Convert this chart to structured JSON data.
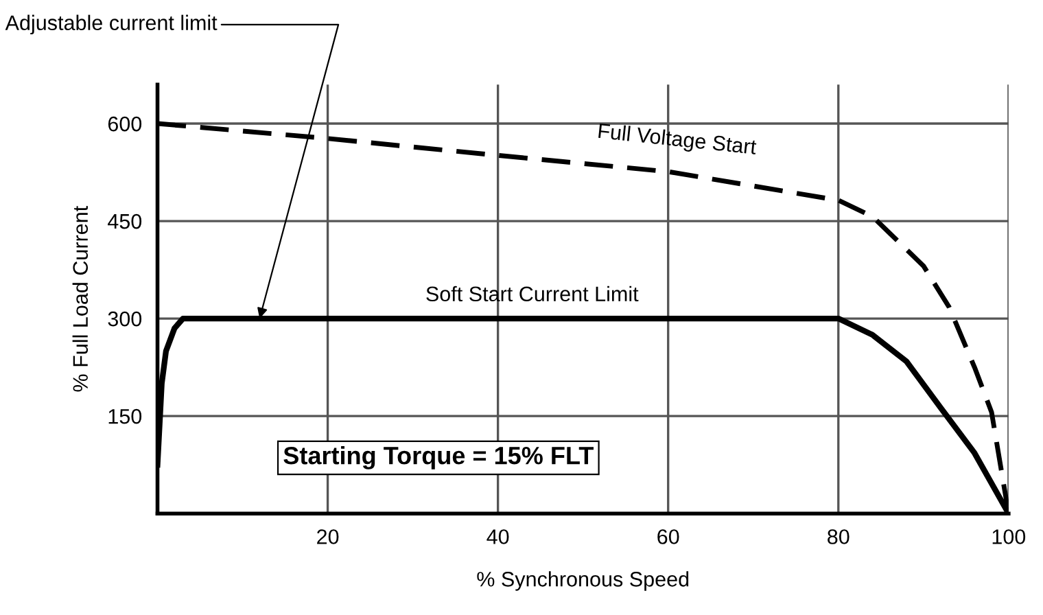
{
  "chart_data": {
    "type": "line",
    "xlabel": "% Synchronous Speed",
    "ylabel": "% Full Load Current",
    "xlim": [
      0,
      100
    ],
    "ylim": [
      0,
      660
    ],
    "xticks": [
      20,
      40,
      60,
      80,
      100
    ],
    "yticks": [
      150,
      300,
      450,
      600
    ],
    "grid": true,
    "legend": false,
    "marker": "none",
    "series": [
      {
        "name": "Full Voltage Start",
        "color": "#000000",
        "line_style": "dashed",
        "x": [
          0,
          20,
          40,
          60,
          80,
          84,
          90,
          93,
          96,
          98,
          100
        ],
        "values": [
          600,
          577,
          551,
          526,
          482,
          457,
          381,
          318,
          225,
          156,
          0
        ]
      },
      {
        "name": "Soft Start Current Limit",
        "color": "#000000",
        "line_style": "solid",
        "x": [
          0,
          0.5,
          1,
          2,
          3,
          80,
          84,
          88,
          92,
          96,
          100
        ],
        "values": [
          75,
          200,
          250,
          285,
          300,
          300,
          275,
          234,
          163,
          93,
          0
        ]
      }
    ],
    "annotations": [
      {
        "text": "Adjustable current limit",
        "x": 12,
        "y": 300
      },
      "Starting Torque = 15% FLT"
    ]
  }
}
